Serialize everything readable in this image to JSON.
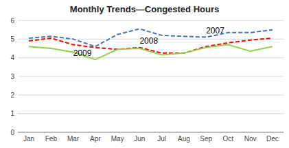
{
  "chart_data": {
    "type": "line",
    "title": "Monthly Trends—Congested Hours",
    "categories": [
      "Jan",
      "Feb",
      "Mar",
      "Apr",
      "May",
      "Jun",
      "Jul",
      "Aug",
      "Sep",
      "Oct",
      "Nov",
      "Dec"
    ],
    "series": [
      {
        "color": "#4472C4",
        "line_style": "dashed",
        "values": [
          5.05,
          5.15,
          5.0,
          4.6,
          5.25,
          5.55,
          5.2,
          5.15,
          5.1,
          5.35,
          5.35,
          5.5
        ]
      },
      {
        "color": "#FF0000",
        "line_style": "dashed",
        "values": [
          4.9,
          5.05,
          4.7,
          4.55,
          4.45,
          4.55,
          4.25,
          4.25,
          4.6,
          4.8,
          4.95,
          5.05
        ]
      },
      {
        "color": "#92D050",
        "line_style": "solid",
        "values": [
          4.6,
          4.5,
          4.3,
          3.9,
          4.45,
          4.5,
          4.15,
          4.25,
          4.55,
          4.7,
          4.35,
          4.6
        ]
      }
    ],
    "annotations": [
      {
        "text": "2007",
        "x": "Sep",
        "y": 5.3
      },
      {
        "text": "2008",
        "x": "Jun",
        "y": 4.75
      },
      {
        "text": "2009",
        "x": "Mar",
        "y": 4.1
      }
    ],
    "ylim": [
      0,
      6
    ],
    "yticks": [
      0,
      1,
      2,
      3,
      4,
      5,
      6
    ],
    "grid": true
  }
}
